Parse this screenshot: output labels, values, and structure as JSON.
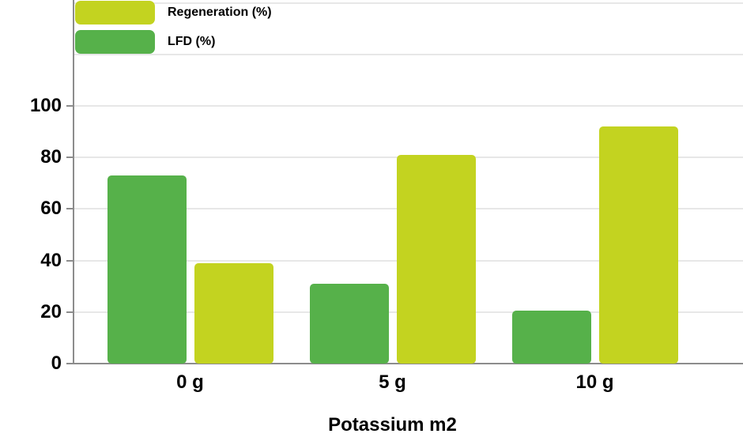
{
  "chart_data": {
    "type": "bar",
    "title": "",
    "categories": [
      "0 g",
      "5 g",
      "10 g"
    ],
    "series": [
      {
        "name": "LFD (%)",
        "color": "#56b14a",
        "values": [
          73,
          31,
          20.5
        ]
      },
      {
        "name": "Regeneration (%)",
        "color": "#c3d320",
        "values": [
          39,
          81,
          92
        ]
      }
    ],
    "legend_order": [
      "Regeneration (%)",
      "LFD (%)"
    ],
    "legend_position": "top-left",
    "xlabel": "Potassium m2",
    "ylabel": "",
    "ylim": [
      0,
      141
    ],
    "y_tick_labels": [
      0,
      20,
      40,
      60,
      80,
      100
    ],
    "gridline_values": [
      20,
      40,
      60,
      80,
      100,
      120,
      140
    ],
    "grid": true
  },
  "colors": {
    "background": "#ffffff",
    "axis": "#8c8c8c",
    "gridline": "#e7e7e7",
    "text": "#000000"
  }
}
